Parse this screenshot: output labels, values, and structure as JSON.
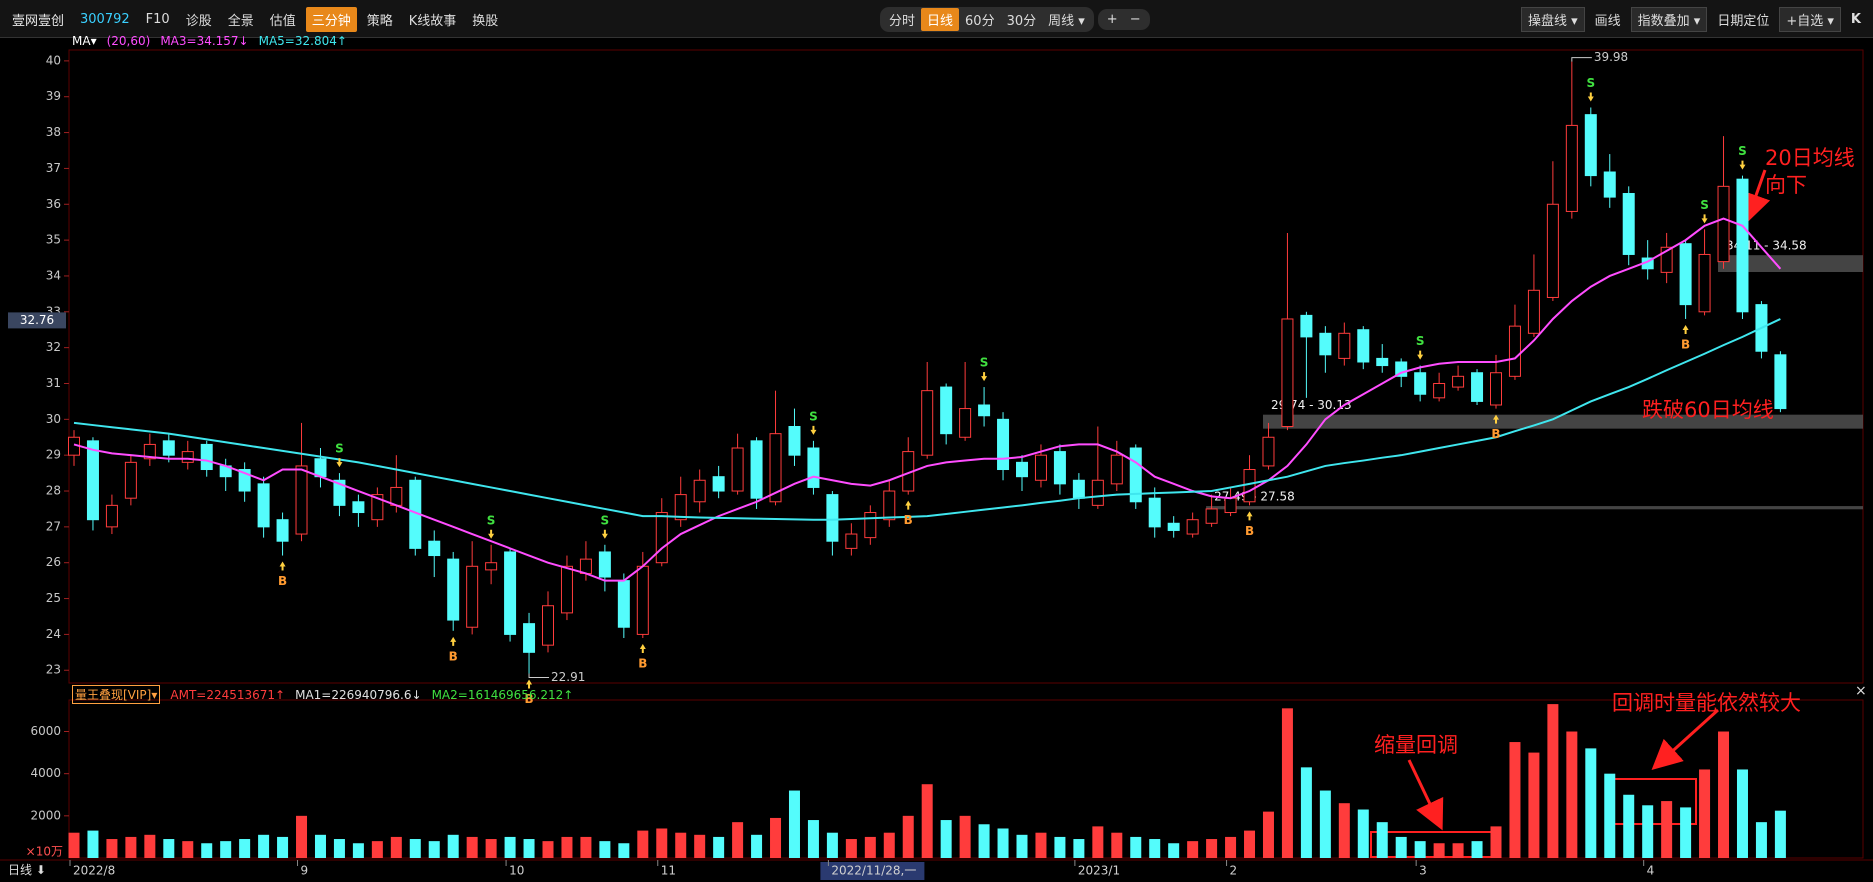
{
  "toolbar": {
    "name": "壹网壹创",
    "code": "300792",
    "tabs": [
      {
        "label": "F10"
      },
      {
        "label": "诊股"
      },
      {
        "label": "全景"
      },
      {
        "label": "估值"
      },
      {
        "label": "三分钟",
        "active": true
      },
      {
        "label": "策略"
      },
      {
        "label": "K线故事"
      },
      {
        "label": "换股"
      }
    ],
    "periods": [
      {
        "label": "分时"
      },
      {
        "label": "日线",
        "active": true
      },
      {
        "label": "60分"
      },
      {
        "label": "30分"
      },
      {
        "label": "周线 ▾"
      }
    ],
    "zoom": [
      "+",
      "−"
    ],
    "tools": [
      "操盘线 ▾",
      "画线",
      "指数叠加 ▾",
      "日期定位",
      "+自选 ▾"
    ],
    "corner": "K"
  },
  "bottom": {
    "period": "日线 ⬇",
    "close": "×"
  },
  "chart_data": [
    {
      "type": "candlestick",
      "legend_prefix": "MA▾",
      "legend_params": "(20,60)",
      "up_color": "#ff3c3c",
      "down_color": "#54fcfc",
      "categories": [
        "2022/8",
        null,
        null,
        null,
        null,
        null,
        null,
        null,
        null,
        null,
        null,
        null,
        "9",
        null,
        null,
        null,
        null,
        null,
        null,
        null,
        null,
        null,
        null,
        "10",
        null,
        null,
        null,
        null,
        null,
        null,
        null,
        "11",
        null,
        null,
        null,
        null,
        null,
        null,
        null,
        null,
        "2022/11/28,一",
        null,
        null,
        null,
        null,
        null,
        null,
        null,
        null,
        null,
        null,
        null,
        null,
        "2023/1",
        null,
        null,
        null,
        null,
        null,
        null,
        null,
        "2",
        null,
        null,
        null,
        null,
        null,
        null,
        null,
        null,
        null,
        "3",
        null,
        null,
        null,
        null,
        null,
        null,
        null,
        null,
        null,
        null,
        null,
        "4",
        null,
        null,
        null,
        null,
        null,
        null,
        null
      ],
      "cursor": 40,
      "open": [
        29.0,
        29.4,
        27.0,
        27.8,
        28.9,
        29.4,
        28.8,
        29.3,
        28.7,
        28.6,
        28.2,
        27.2,
        26.8,
        28.9,
        28.3,
        27.7,
        27.2,
        27.6,
        28.3,
        26.6,
        26.1,
        24.2,
        25.8,
        26.3,
        24.3,
        23.7,
        24.6,
        25.7,
        26.3,
        25.5,
        24.0,
        26.0,
        27.2,
        27.7,
        28.4,
        28.0,
        29.4,
        27.7,
        29.8,
        29.2,
        27.9,
        26.4,
        26.7,
        27.2,
        28.0,
        29.0,
        30.9,
        29.5,
        30.4,
        30.0,
        28.8,
        28.3,
        29.1,
        28.3,
        27.6,
        28.2,
        29.2,
        27.8,
        27.1,
        26.8,
        27.1,
        27.4,
        27.7,
        28.7,
        29.8,
        32.9,
        32.4,
        31.7,
        32.5,
        31.7,
        31.6,
        31.3,
        30.6,
        30.9,
        31.3,
        30.4,
        31.2,
        32.4,
        33.4,
        35.8,
        38.5,
        36.9,
        36.3,
        34.5,
        34.1,
        34.9,
        33.0,
        34.4,
        36.7,
        33.2,
        31.8
      ],
      "high": [
        29.7,
        29.5,
        27.9,
        29.0,
        29.6,
        29.6,
        29.4,
        29.4,
        28.9,
        28.8,
        28.4,
        27.4,
        29.9,
        29.2,
        28.5,
        27.9,
        28.1,
        29.0,
        28.4,
        26.9,
        26.3,
        26.6,
        26.5,
        26.4,
        24.6,
        25.2,
        26.2,
        26.6,
        26.5,
        25.7,
        26.3,
        27.8,
        28.4,
        28.6,
        28.7,
        29.6,
        29.5,
        30.8,
        30.3,
        29.4,
        28.0,
        27.1,
        27.6,
        28.3,
        29.5,
        31.6,
        31.0,
        31.6,
        30.9,
        30.2,
        29.0,
        29.3,
        29.3,
        28.5,
        29.8,
        29.4,
        29.3,
        28.1,
        27.3,
        27.4,
        27.9,
        28.1,
        29.0,
        29.9,
        35.2,
        33.0,
        32.6,
        32.7,
        32.6,
        32.1,
        31.7,
        31.5,
        31.3,
        31.5,
        31.4,
        31.8,
        33.2,
        34.6,
        37.2,
        39.98,
        38.7,
        37.4,
        36.5,
        35.0,
        35.2,
        35.0,
        35.3,
        37.9,
        36.8,
        33.3,
        31.9
      ],
      "low": [
        28.7,
        26.9,
        26.8,
        27.6,
        28.7,
        28.8,
        28.6,
        28.4,
        28.0,
        27.7,
        26.7,
        26.2,
        26.6,
        28.1,
        27.3,
        27.0,
        27.0,
        27.4,
        26.2,
        25.6,
        24.1,
        24.0,
        25.4,
        23.8,
        22.91,
        23.5,
        24.4,
        25.5,
        25.2,
        23.9,
        23.9,
        25.9,
        27.0,
        27.4,
        27.8,
        27.9,
        27.5,
        27.6,
        28.7,
        27.9,
        26.2,
        26.2,
        26.5,
        27.0,
        27.9,
        28.9,
        29.3,
        29.4,
        29.8,
        28.3,
        28.0,
        28.1,
        27.9,
        27.5,
        27.5,
        28.0,
        27.5,
        26.7,
        26.7,
        26.7,
        27.0,
        27.3,
        27.6,
        28.6,
        29.7,
        30.6,
        31.3,
        31.5,
        31.4,
        31.3,
        30.9,
        30.5,
        30.5,
        30.8,
        30.4,
        30.3,
        31.1,
        32.3,
        33.3,
        35.6,
        36.5,
        35.9,
        34.3,
        33.9,
        33.8,
        32.8,
        32.9,
        34.2,
        32.8,
        31.7,
        30.2
      ],
      "close": [
        29.5,
        27.2,
        27.6,
        28.8,
        29.3,
        29.0,
        29.1,
        28.6,
        28.4,
        28.0,
        27.0,
        26.6,
        28.7,
        28.4,
        27.6,
        27.4,
        27.9,
        28.1,
        26.4,
        26.2,
        24.4,
        25.9,
        26.0,
        24.0,
        23.5,
        24.8,
        25.9,
        26.1,
        25.6,
        24.2,
        25.9,
        27.4,
        27.9,
        28.3,
        28.0,
        29.2,
        27.8,
        29.6,
        29.0,
        28.1,
        26.6,
        26.8,
        27.4,
        28.0,
        29.1,
        30.8,
        29.6,
        30.3,
        30.1,
        28.6,
        28.4,
        29.0,
        28.2,
        27.8,
        28.3,
        29.0,
        27.7,
        27.0,
        26.9,
        27.2,
        27.5,
        27.8,
        28.6,
        29.5,
        32.8,
        32.3,
        31.8,
        32.4,
        31.6,
        31.5,
        31.2,
        30.7,
        31.0,
        31.2,
        30.5,
        31.3,
        32.6,
        33.6,
        36.0,
        38.2,
        36.8,
        36.2,
        34.6,
        34.2,
        34.8,
        33.2,
        34.6,
        36.5,
        33.0,
        31.9,
        30.3
      ],
      "series": [
        {
          "name": "MA3=34.157↓",
          "color": "#ff4dff",
          "values": [
            29.3,
            29.15,
            29.05,
            29.0,
            28.95,
            28.9,
            28.9,
            28.85,
            28.7,
            28.5,
            28.3,
            28.6,
            28.6,
            28.4,
            28.2,
            28.0,
            27.8,
            27.6,
            27.4,
            27.2,
            27.0,
            26.8,
            26.6,
            26.4,
            26.2,
            26.0,
            25.85,
            25.7,
            25.5,
            25.5,
            25.9,
            26.4,
            26.8,
            27.05,
            27.3,
            27.5,
            27.7,
            27.95,
            28.2,
            28.4,
            28.3,
            28.2,
            28.15,
            28.3,
            28.5,
            28.7,
            28.8,
            28.85,
            28.9,
            28.9,
            28.95,
            29.1,
            29.25,
            29.3,
            29.3,
            29.1,
            28.8,
            28.4,
            28.2,
            28.0,
            27.85,
            27.8,
            28.0,
            28.3,
            28.7,
            29.3,
            30.0,
            30.4,
            30.7,
            31.0,
            31.3,
            31.45,
            31.55,
            31.6,
            31.6,
            31.6,
            31.7,
            32.2,
            32.8,
            33.3,
            33.7,
            34.0,
            34.2,
            34.4,
            34.7,
            35.0,
            35.4,
            35.6,
            35.4,
            34.8,
            34.2
          ]
        },
        {
          "name": "MA5=32.804↑",
          "color": "#3fe6ee",
          "values": [
            29.9,
            29.84,
            29.78,
            29.72,
            29.66,
            29.6,
            29.52,
            29.44,
            29.36,
            29.28,
            29.2,
            29.12,
            29.04,
            28.96,
            28.88,
            28.8,
            28.7,
            28.6,
            28.5,
            28.4,
            28.3,
            28.2,
            28.1,
            28.0,
            27.9,
            27.8,
            27.7,
            27.6,
            27.5,
            27.4,
            27.3,
            27.3,
            27.28,
            27.26,
            27.25,
            27.24,
            27.23,
            27.22,
            27.21,
            27.2,
            27.2,
            27.22,
            27.24,
            27.26,
            27.28,
            27.3,
            27.36,
            27.42,
            27.48,
            27.54,
            27.6,
            27.67,
            27.73,
            27.8,
            27.85,
            27.9,
            27.92,
            27.94,
            27.96,
            27.98,
            28.0,
            28.1,
            28.2,
            28.3,
            28.4,
            28.55,
            28.7,
            28.78,
            28.85,
            28.93,
            29.0,
            29.1,
            29.2,
            29.3,
            29.4,
            29.5,
            29.67,
            29.83,
            30.0,
            30.25,
            30.5,
            30.7,
            30.9,
            31.13,
            31.37,
            31.6,
            31.83,
            32.07,
            32.3,
            32.55,
            32.8
          ]
        }
      ],
      "ylim": [
        22.7,
        40.22
      ],
      "yticks": [
        23,
        24,
        25,
        26,
        27,
        28,
        29,
        30,
        31,
        32,
        33,
        34,
        35,
        36,
        37,
        38,
        39,
        40
      ],
      "price_tag": {
        "value": 32.76,
        "label": "32.76"
      },
      "max_label": "39.98",
      "min_label": "22.91",
      "zones": [
        {
          "low": 29.74,
          "high": 30.13,
          "label": "29.74 - 30.13",
          "from": 63
        },
        {
          "low": 27.49,
          "high": 27.58,
          "label": "27.49 - 27.58",
          "from": 60
        },
        {
          "low": 34.11,
          "high": 34.58,
          "label": "34.11 - 34.58",
          "from": 87
        }
      ],
      "signals": [
        {
          "at": 11,
          "label": "B"
        },
        {
          "at": 20,
          "label": "B"
        },
        {
          "at": 24,
          "label": "B"
        },
        {
          "at": 30,
          "label": "B"
        },
        {
          "at": 44,
          "label": "B"
        },
        {
          "at": 62,
          "label": "B"
        },
        {
          "at": 75,
          "label": "B"
        },
        {
          "at": 85,
          "label": "B"
        },
        {
          "at": 14,
          "label": "S"
        },
        {
          "at": 22,
          "label": "S"
        },
        {
          "at": 28,
          "label": "S"
        },
        {
          "at": 39,
          "label": "S"
        },
        {
          "at": 48,
          "label": "S"
        },
        {
          "at": 71,
          "label": "S"
        },
        {
          "at": 80,
          "label": "S"
        },
        {
          "at": 86,
          "label": "S"
        },
        {
          "at": 88,
          "label": "S"
        }
      ],
      "annotations": [
        "20日均线",
        "向下",
        "跌破60日均线"
      ]
    },
    {
      "type": "bar",
      "legend": [
        {
          "text": "量王叠现[VIP]▾",
          "color": "#ffa040",
          "boxed": true
        },
        {
          "text": "AMT=224513671↑",
          "color": "#ff3c3c"
        },
        {
          "text": "MA1=226940796.6↓",
          "color": "#e0e0e0"
        },
        {
          "text": "MA2=161469656.212↑",
          "color": "#40e040"
        }
      ],
      "unit": "×10万",
      "values": [
        1200,
        1300,
        900,
        1000,
        1100,
        900,
        800,
        700,
        800,
        900,
        1100,
        1000,
        2000,
        1100,
        900,
        700,
        800,
        1000,
        900,
        800,
        1100,
        1000,
        900,
        1000,
        900,
        800,
        1000,
        1000,
        800,
        700,
        1300,
        1400,
        1200,
        1100,
        1000,
        1700,
        1100,
        1900,
        3200,
        1800,
        1200,
        900,
        1000,
        1200,
        2000,
        3500,
        1800,
        2000,
        1600,
        1400,
        1100,
        1200,
        1000,
        900,
        1500,
        1200,
        1000,
        900,
        700,
        800,
        900,
        1000,
        1300,
        2200,
        7100,
        4300,
        3200,
        2600,
        2300,
        1700,
        1000,
        800,
        700,
        700,
        800,
        1500,
        5500,
        5000,
        7300,
        6000,
        5200,
        4000,
        3000,
        2500,
        2700,
        2400,
        4200,
        6000,
        4200,
        1700,
        2245
      ],
      "ylim": [
        0,
        7400
      ],
      "yticks": [
        2000,
        4000,
        6000
      ],
      "annotations": [
        "缩量回调",
        "回调时量能依然较大"
      ]
    }
  ]
}
